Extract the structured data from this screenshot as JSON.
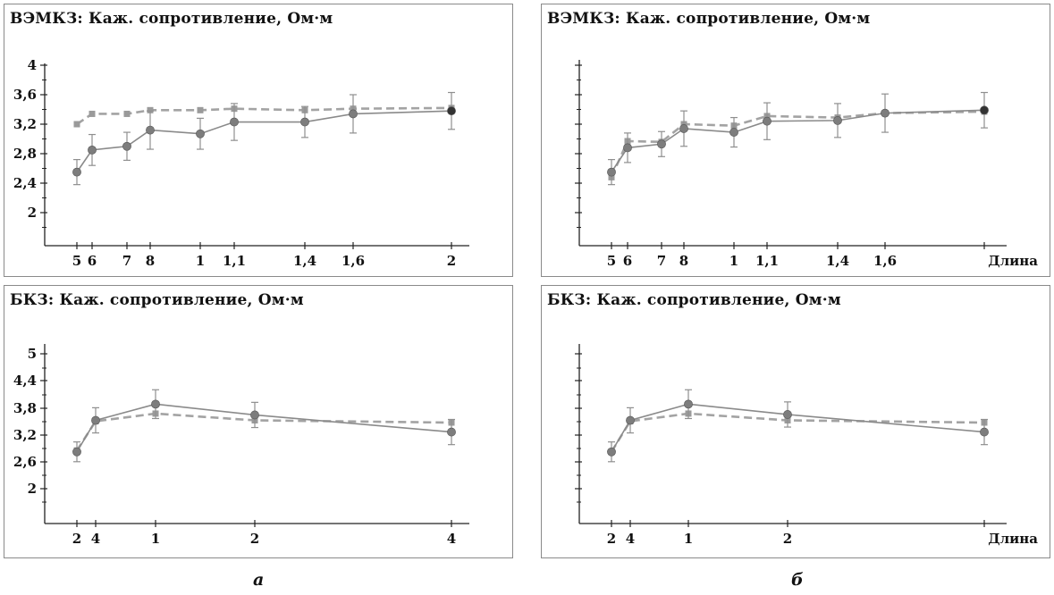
{
  "panels": [
    {
      "title": "ВЭМКЗ: Каж. сопротивление, Ом·м"
    },
    {
      "title": "ВЭМКЗ: Каж. сопротивление, Ом·м"
    },
    {
      "title": "БКЗ: Каж. сопротивление, Ом·м"
    },
    {
      "title": "БКЗ: Каж. сопротивление, Ом·м"
    }
  ],
  "captions": {
    "a": "а",
    "b": "б"
  },
  "chart_data": [
    {
      "type": "line",
      "title": "ВЭМКЗ: Каж. сопротивление, Ом·м",
      "xlabel": "",
      "categories": [
        "5",
        "6",
        "7",
        "8",
        "1",
        "1,1",
        "1,4",
        "1,6",
        "2"
      ],
      "y_ticks": [
        "2",
        "2,4",
        "2,8",
        "3,2",
        "3,6",
        "4"
      ],
      "ylim": [
        1.6,
        4.1
      ],
      "grid": false,
      "series": [
        {
          "style": "dashed",
          "color": "#a3a3a3",
          "values": [
            3.2,
            3.34,
            3.34,
            3.39,
            3.39,
            3.41,
            3.39,
            3.41,
            3.42
          ],
          "errors": [
            0,
            0,
            0,
            0,
            0,
            0,
            0,
            0,
            0
          ]
        },
        {
          "style": "solid",
          "color": "#8a8a8a",
          "values": [
            2.55,
            2.85,
            2.9,
            3.12,
            3.07,
            3.23,
            3.23,
            3.34,
            3.38
          ],
          "errors": [
            0.17,
            0.21,
            0.19,
            0.26,
            0.21,
            0.25,
            0.21,
            0.26,
            0.25
          ]
        }
      ]
    },
    {
      "type": "line",
      "title": "ВЭМКЗ: Каж. сопротивление, Ом·м",
      "xlabel": "Длина",
      "categories": [
        "5",
        "6",
        "7",
        "8",
        "1",
        "1,1",
        "1,4",
        "1,6",
        ""
      ],
      "y_ticks": [
        "",
        "",
        "",
        "",
        "",
        ""
      ],
      "ylim": [
        1.6,
        4.1
      ],
      "grid": false,
      "series": [
        {
          "style": "dashed",
          "color": "#a3a3a3",
          "values": [
            2.48,
            2.97,
            2.96,
            3.2,
            3.18,
            3.31,
            3.29,
            3.35,
            3.37
          ],
          "errors": [
            0,
            0,
            0,
            0,
            0,
            0,
            0,
            0,
            0
          ]
        },
        {
          "style": "solid",
          "color": "#8a8a8a",
          "values": [
            2.55,
            2.88,
            2.93,
            3.14,
            3.09,
            3.24,
            3.25,
            3.35,
            3.39
          ],
          "errors": [
            0.17,
            0.2,
            0.17,
            0.24,
            0.2,
            0.25,
            0.23,
            0.26,
            0.24
          ]
        }
      ]
    },
    {
      "type": "line",
      "title": "БКЗ: Каж. сопротивление, Ом·м",
      "xlabel": "",
      "categories": [
        "2",
        "4",
        "1",
        "2",
        "4"
      ],
      "y_ticks": [
        "2",
        "2,6",
        "3,2",
        "3,8",
        "4,4",
        "5"
      ],
      "ylim": [
        1.6,
        5.3
      ],
      "grid": false,
      "series": [
        {
          "style": "dashed",
          "color": "#a3a3a3",
          "values": [
            2.85,
            3.5,
            3.67,
            3.52,
            3.47
          ],
          "errors": [
            0,
            0,
            0,
            0,
            0
          ]
        },
        {
          "style": "solid",
          "color": "#8a8a8a",
          "values": [
            2.82,
            3.52,
            3.88,
            3.64,
            3.26
          ],
          "errors": [
            0.22,
            0.28,
            0.32,
            0.28,
            0.28
          ]
        }
      ]
    },
    {
      "type": "line",
      "title": "БКЗ: Каж. сопротивление, Ом·м",
      "xlabel": "Длина",
      "categories": [
        "2",
        "4",
        "1",
        "2",
        ""
      ],
      "y_ticks": [
        "",
        "",
        "",
        "",
        "",
        ""
      ],
      "ylim": [
        1.6,
        5.3
      ],
      "grid": false,
      "series": [
        {
          "style": "dashed",
          "color": "#a3a3a3",
          "values": [
            2.82,
            3.5,
            3.67,
            3.52,
            3.47
          ],
          "errors": [
            0,
            0,
            0,
            0,
            0
          ]
        },
        {
          "style": "solid",
          "color": "#8a8a8a",
          "values": [
            2.82,
            3.52,
            3.88,
            3.65,
            3.26
          ],
          "errors": [
            0.22,
            0.28,
            0.32,
            0.28,
            0.28
          ]
        }
      ]
    }
  ]
}
